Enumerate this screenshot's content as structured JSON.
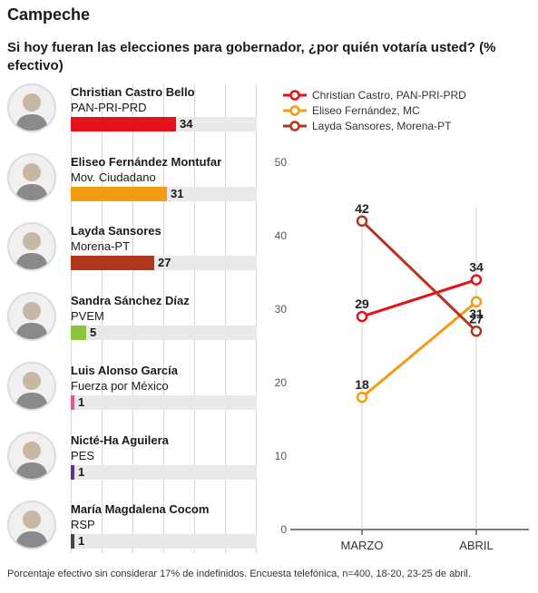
{
  "title": "Campeche",
  "subtitle": "Si hoy fueran las elecciones para gobernador, ¿por quién votaría usted? (% efectivo)",
  "candidates": [
    {
      "name": "Christian Castro Bello",
      "party": "PAN-PRI-PRD",
      "value": 34,
      "value_label": "34",
      "color": "#e3121b"
    },
    {
      "name": "Eliseo Fernández Montufar",
      "party": "Mov. Ciudadano",
      "value": 31,
      "value_label": "31",
      "color": "#f39c12"
    },
    {
      "name": "Layda Sansores",
      "party": "Morena-PT",
      "value": 27,
      "value_label": "27",
      "color": "#b1361e"
    },
    {
      "name": "Sandra Sánchez Díaz",
      "party": "PVEM",
      "value": 5,
      "value_label": "5",
      "color": "#8cc63f"
    },
    {
      "name": "Luis Alonso García",
      "party": "Fuerza por México",
      "value": 1,
      "value_label": "1",
      "color": "#e6559c"
    },
    {
      "name": "Nicté-Ha Aguilera",
      "party": "PES",
      "value": 1,
      "value_label": "1",
      "color": "#6a2c91"
    },
    {
      "name": "María Magdalena Cocom",
      "party": "RSP",
      "value": 1,
      "value_label": "1",
      "color": "#444444"
    }
  ],
  "chart_data": [
    {
      "type": "bar",
      "orientation": "horizontal",
      "categories": [
        "Christian Castro Bello",
        "Eliseo Fernández Montufar",
        "Layda Sansores",
        "Sandra Sánchez Díaz",
        "Luis Alonso García",
        "Nicté-Ha Aguilera",
        "María Magdalena Cocom"
      ],
      "values": [
        34,
        31,
        27,
        5,
        1,
        1,
        1
      ],
      "xlim": [
        0,
        60
      ],
      "grid": true
    },
    {
      "type": "line",
      "categories": [
        "MARZO",
        "ABRIL"
      ],
      "series": [
        {
          "name": "Christian Castro, PAN-PRI-PRD",
          "values": [
            29,
            34
          ],
          "color": "#e3121b"
        },
        {
          "name": "Eliseo Fernández, MC",
          "values": [
            18,
            31
          ],
          "color": "#f39c12"
        },
        {
          "name": "Layda Sansores, Morena-PT",
          "values": [
            42,
            27
          ],
          "color": "#b1361e"
        }
      ],
      "ylim": [
        0,
        50
      ],
      "yticks": [
        "0",
        "10",
        "20",
        "30",
        "40",
        "50"
      ],
      "legend": "top-left",
      "grid": false
    }
  ],
  "footnote": "Porcentaje efectivo sin considerar 17% de indefinidos. Encuesta telefónica, n=400, 18-20, 23-25 de abril."
}
